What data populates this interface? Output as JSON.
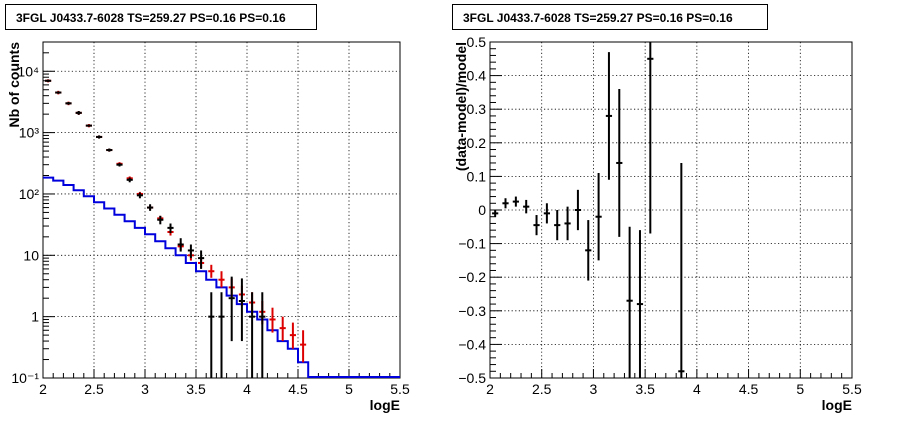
{
  "colors": {
    "data": "#000000",
    "model_points": "#dd0000",
    "model_line": "#0000dd",
    "grid": "#000000"
  },
  "chart_data": [
    {
      "type": "line",
      "title": "3FGL J0433.7-6028 TS=259.27 PS=0.16 PS=0.16",
      "xlabel": "logE",
      "ylabel": "Nb of counts",
      "xlim": [
        2,
        5.5
      ],
      "ylim": [
        0.1,
        30000
      ],
      "ylog": true,
      "grid": true,
      "xticks": [
        2,
        2.5,
        3,
        3.5,
        4,
        4.5,
        5,
        5.5
      ],
      "xtick_labels": [
        "2",
        "2.5",
        "3",
        "3.5",
        "4",
        "4.5",
        "5",
        "5.5"
      ],
      "yticks": [
        0.1,
        1,
        10,
        100,
        1000,
        10000
      ],
      "ytick_labels": [
        "10⁻¹",
        "1",
        "10",
        "10²",
        "10³",
        "10⁴"
      ],
      "bin_width": 0.1,
      "x": [
        2.05,
        2.15,
        2.25,
        2.35,
        2.45,
        2.55,
        2.65,
        2.75,
        2.85,
        2.95,
        3.05,
        3.15,
        3.25,
        3.35,
        3.45,
        3.55,
        3.65,
        3.75,
        3.85,
        3.95,
        4.05,
        4.15,
        4.25,
        4.35,
        4.45,
        4.55
      ],
      "series": [
        {
          "name": "",
          "style": "model_line",
          "values": [
            185,
            165,
            140,
            115,
            92,
            73,
            58,
            46,
            36,
            28,
            22,
            17,
            13,
            10,
            7.5,
            5.5,
            4.0,
            3.0,
            2.2,
            1.6,
            1.2,
            0.9,
            0.6,
            0.4,
            0.3,
            0.18
          ]
        },
        {
          "name": "",
          "style": "model_points",
          "values": [
            7000,
            4500,
            3000,
            2100,
            1300,
            850,
            520,
            310,
            180,
            100,
            60,
            40,
            24,
            14,
            10,
            7.5,
            5.5,
            4.0,
            3.0,
            2.3,
            1.7,
            1.2,
            0.9,
            0.65,
            0.5,
            0.35
          ],
          "err_low": [
            6600,
            4200,
            2800,
            1950,
            1220,
            800,
            490,
            290,
            167,
            92,
            55,
            36,
            21,
            12,
            8.2,
            6.2,
            4.3,
            3.0,
            2.1,
            1.5,
            1.1,
            0.75,
            0.55,
            0.4,
            0.3,
            0.18
          ],
          "err_high": [
            7400,
            4800,
            3200,
            2250,
            1380,
            900,
            550,
            330,
            193,
            108,
            65,
            44,
            27,
            16,
            12,
            9,
            7,
            5.5,
            4.2,
            3.2,
            2.5,
            1.8,
            1.4,
            1.0,
            0.8,
            0.6
          ]
        },
        {
          "name": "",
          "style": "data",
          "values": [
            7000,
            4500,
            3000,
            2100,
            1300,
            850,
            520,
            300,
            170,
            95,
            60,
            38,
            28,
            15,
            12,
            9,
            1,
            1,
            2,
            1.8,
            1,
            1,
            0,
            0,
            0,
            0
          ],
          "err_low": [
            6700,
            4300,
            2850,
            1950,
            1250,
            800,
            490,
            280,
            155,
            85,
            53,
            32,
            23,
            11.5,
            9,
            6,
            0.1,
            0.1,
            0.4,
            0.4,
            0.1,
            0.1,
            0,
            0,
            0,
            0
          ],
          "err_high": [
            7300,
            4700,
            3150,
            2250,
            1350,
            900,
            550,
            320,
            185,
            105,
            68,
            44,
            33,
            19,
            15,
            12,
            2.5,
            2.5,
            4.5,
            4.2,
            2.5,
            2.5,
            0,
            0,
            0,
            0
          ]
        }
      ]
    },
    {
      "type": "scatter",
      "title": "3FGL J0433.7-6028 TS=259.27 PS=0.16 PS=0.16",
      "xlabel": "logE",
      "ylabel": "(data-model)/model",
      "xlim": [
        2,
        5.5
      ],
      "ylim": [
        -0.5,
        0.5
      ],
      "grid": true,
      "xticks": [
        2,
        2.5,
        3,
        3.5,
        4,
        4.5,
        5,
        5.5
      ],
      "xtick_labels": [
        "2",
        "2.5",
        "3",
        "3.5",
        "4",
        "4.5",
        "5",
        "5.5"
      ],
      "yticks": [
        -0.5,
        -0.4,
        -0.3,
        -0.2,
        -0.1,
        0,
        0.1,
        0.2,
        0.3,
        0.4,
        0.5
      ],
      "ytick_labels": [
        "−0.5",
        "−0.4",
        "−0.3",
        "−0.2",
        "−0.1",
        "0",
        "0.1",
        "0.2",
        "0.3",
        "0.4",
        "0.5"
      ],
      "bin_width": 0.1,
      "x": [
        2.05,
        2.15,
        2.25,
        2.35,
        2.45,
        2.55,
        2.65,
        2.75,
        2.85,
        2.95,
        3.05,
        3.15,
        3.25,
        3.35,
        3.45,
        3.55,
        3.85
      ],
      "y": [
        -0.01,
        0.02,
        0.025,
        0.01,
        -0.045,
        -0.01,
        -0.045,
        -0.04,
        0.0,
        -0.12,
        -0.02,
        0.28,
        0.14,
        -0.27,
        -0.28,
        0.45,
        -0.48
      ],
      "err_low": [
        -0.02,
        0.005,
        0.01,
        -0.01,
        -0.075,
        -0.04,
        -0.09,
        -0.09,
        -0.06,
        -0.21,
        -0.15,
        0.09,
        -0.08,
        -0.5,
        -0.5,
        -0.07,
        -0.5
      ],
      "err_high": [
        0.0,
        0.035,
        0.04,
        0.03,
        -0.015,
        0.02,
        0.0,
        0.01,
        0.06,
        -0.03,
        0.11,
        0.47,
        0.36,
        -0.05,
        -0.06,
        0.5,
        0.14
      ]
    }
  ]
}
